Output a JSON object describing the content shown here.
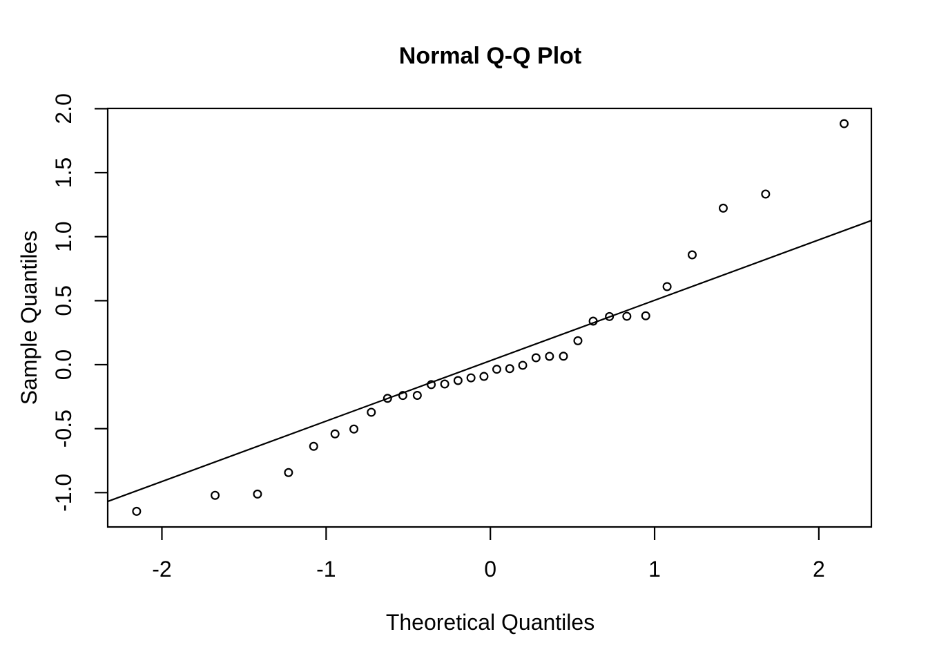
{
  "figure": {
    "background_color": "#ffffff",
    "foreground_color": "#000000"
  },
  "chart_data": {
    "type": "scatter",
    "title": "Normal Q-Q Plot",
    "xlabel": "Theoretical Quantiles",
    "ylabel": "Sample Quantiles",
    "grid": false,
    "legend": "none",
    "marker": {
      "shape": "open-circle",
      "color": "#000000"
    },
    "xlim": [
      -2.33,
      2.32
    ],
    "ylim": [
      -1.268,
      2.002
    ],
    "x_tick_values": [
      -2,
      -1,
      0,
      1,
      2
    ],
    "x_tick_labels": [
      "-2",
      "-1",
      "0",
      "1",
      "2"
    ],
    "y_tick_values": [
      -1.0,
      -0.5,
      0.0,
      0.5,
      1.0,
      1.5,
      2.0
    ],
    "y_tick_labels": [
      "-1.0",
      "-0.5",
      "0.0",
      "0.5",
      "1.0",
      "1.5",
      "2.0"
    ],
    "series": [
      {
        "name": "sample-quantile-points",
        "x": [
          -2.154,
          -1.676,
          -1.418,
          -1.229,
          -1.076,
          -0.946,
          -0.831,
          -0.725,
          -0.626,
          -0.533,
          -0.445,
          -0.36,
          -0.278,
          -0.197,
          -0.118,
          -0.039,
          0.039,
          0.118,
          0.197,
          0.278,
          0.36,
          0.445,
          0.533,
          0.626,
          0.725,
          0.831,
          0.946,
          1.076,
          1.229,
          1.418,
          1.676,
          2.154
        ],
        "y": [
          -1.146,
          -1.021,
          -1.011,
          -0.843,
          -0.638,
          -0.541,
          -0.503,
          -0.372,
          -0.263,
          -0.241,
          -0.24,
          -0.156,
          -0.151,
          -0.124,
          -0.103,
          -0.092,
          -0.036,
          -0.031,
          -0.005,
          0.054,
          0.065,
          0.066,
          0.187,
          0.34,
          0.376,
          0.378,
          0.382,
          0.61,
          0.858,
          1.223,
          1.333,
          1.883
        ]
      }
    ],
    "reference_line": {
      "slope": 0.472,
      "intercept": 0.031,
      "color": "#000000"
    }
  }
}
